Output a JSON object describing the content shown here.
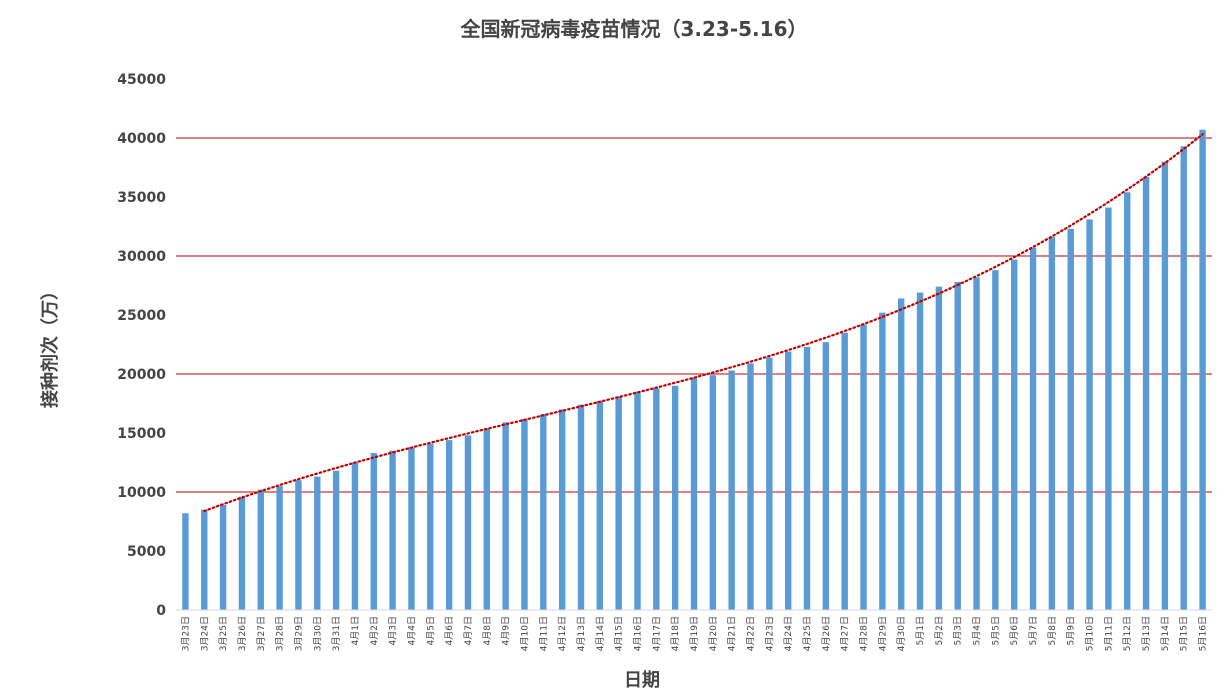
{
  "colors": {
    "bar": "#5b9bd5",
    "gridline": "#c00000",
    "trendline": "#c00000",
    "axis": "#d9d9d9",
    "text": "#444444"
  },
  "chart_data": {
    "type": "bar",
    "title": "全国新冠病毒疫苗情况（3.23-5.16）",
    "xlabel": "日期",
    "ylabel": "接种剂次（万）",
    "ylim": [
      0,
      45000
    ],
    "yticks": [
      0,
      5000,
      10000,
      15000,
      20000,
      25000,
      30000,
      35000,
      40000,
      45000
    ],
    "gridlines": [
      10000,
      20000,
      30000,
      40000
    ],
    "trendline": "dotted polynomial",
    "legend": "none",
    "categories": [
      "3月23日",
      "3月24日",
      "3月25日",
      "3月26日",
      "3月27日",
      "3月28日",
      "3月29日",
      "3月30日",
      "3月31日",
      "4月1日",
      "4月2日",
      "4月3日",
      "4月4日",
      "4月5日",
      "4月6日",
      "4月7日",
      "4月8日",
      "4月9日",
      "4月10日",
      "4月11日",
      "4月12日",
      "4月13日",
      "4月14日",
      "4月15日",
      "4月16日",
      "4月17日",
      "4月18日",
      "4月19日",
      "4月20日",
      "4月21日",
      "4月22日",
      "4月23日",
      "4月24日",
      "4月25日",
      "4月26日",
      "4月27日",
      "4月28日",
      "4月29日",
      "4月30日",
      "5月1日",
      "5月2日",
      "5月3日",
      "5月4日",
      "5月5日",
      "5月6日",
      "5月7日",
      "5月8日",
      "5月9日",
      "5月10日",
      "5月11日",
      "5月12日",
      "5月13日",
      "5月14日",
      "5月15日",
      "5月16日"
    ],
    "values": [
      8200,
      8500,
      8900,
      9600,
      10200,
      10500,
      11000,
      11300,
      11800,
      12500,
      13300,
      13500,
      13800,
      14100,
      14400,
      14800,
      15400,
      15900,
      16200,
      16600,
      17000,
      17400,
      17700,
      18100,
      18500,
      18800,
      19000,
      19700,
      19900,
      20300,
      20900,
      21400,
      21900,
      22300,
      22700,
      23500,
      24200,
      25200,
      26400,
      26900,
      27400,
      27800,
      28200,
      28800,
      29700,
      30700,
      31600,
      32300,
      33100,
      34100,
      35400,
      36700,
      38000,
      39300,
      40700
    ]
  }
}
